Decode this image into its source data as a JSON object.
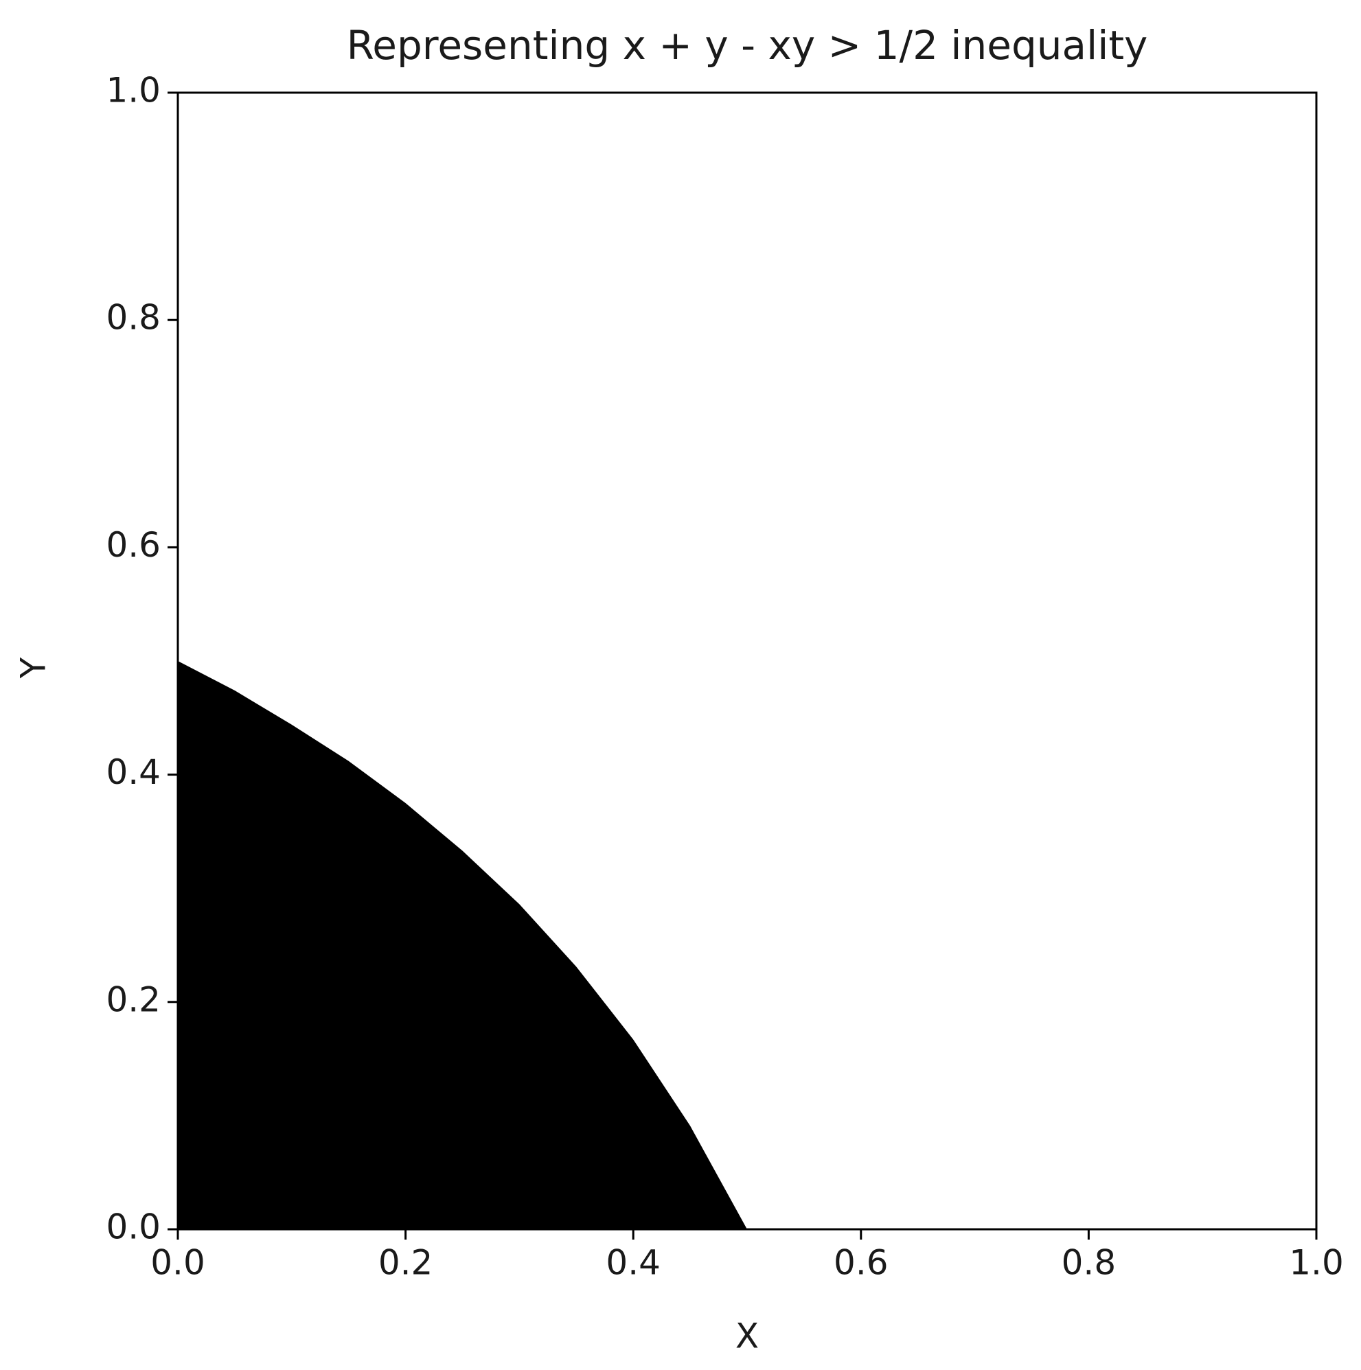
{
  "chart_data": {
    "type": "area",
    "title": "Representing x + y - xy > 1/2 inequality",
    "x_label": "X",
    "y_label": "Y",
    "x": [
      0,
      0.05,
      0.1,
      0.15,
      0.2,
      0.25,
      0.3,
      0.35,
      0.4,
      0.45,
      0.5
    ],
    "values": [
      0.5,
      0.474,
      0.444,
      0.412,
      0.375,
      0.333,
      0.286,
      0.231,
      0.167,
      0.091,
      0
    ],
    "color": "#000000",
    "xlim": [
      0,
      1
    ],
    "ylim": [
      0,
      1
    ],
    "xticks": [
      {
        "value": 0,
        "label": "0.0"
      },
      0.2,
      0.4,
      0.6,
      0.8,
      {
        "value": 1,
        "label": "1.0"
      }
    ],
    "yticks": [
      {
        "value": 0,
        "label": "0.0"
      },
      0.2,
      0.4,
      0.6,
      0.8,
      {
        "value": 1,
        "label": "1.0"
      }
    ],
    "grid": false
  }
}
